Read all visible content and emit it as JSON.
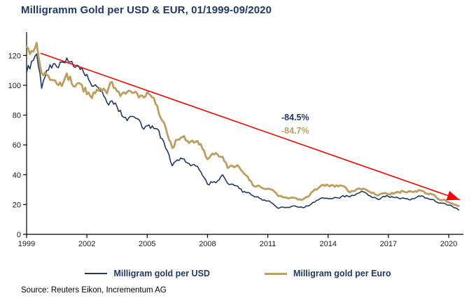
{
  "title": "Milligramm Gold per USD & EUR, 01/1999-09/2020",
  "source_line": "Source: Reuters Eikon, Incrementum AG",
  "colors": {
    "navy": "#1F3864",
    "gold": "#BD9E5F",
    "red": "#FF0000",
    "axis": "#000000"
  },
  "annotations": {
    "usd_decline": "-84.5%",
    "eur_decline": "-84.7%"
  },
  "legend": {
    "usd_label": "Milligram gold per USD",
    "eur_label": "Milligram gold per Euro"
  },
  "chart_data": {
    "type": "line",
    "title": "Milligramm Gold per USD & EUR, 01/1999-09/2020",
    "xlabel": "",
    "ylabel": "",
    "xlim": [
      1999,
      2020.73
    ],
    "ylim": [
      0,
      130
    ],
    "x_ticks": [
      1999,
      2002,
      2005,
      2008,
      2011,
      2014,
      2017,
      2020
    ],
    "y_ticks": [
      0,
      20,
      40,
      60,
      80,
      100,
      120
    ],
    "grid": false,
    "legend_position": "bottom",
    "x_start": 1999.0,
    "x_step": 0.25,
    "series": [
      {
        "name": "Milligram gold per USD",
        "color": "#1F3864",
        "values": [
          108.4,
          116.1,
          121.0,
          98.0,
          110.0,
          111.5,
          112.3,
          115.6,
          118.3,
          116.0,
          113.5,
          111.9,
          107.3,
          99.4,
          99.1,
          96.3,
          88.4,
          89.6,
          85.7,
          79.3,
          76.2,
          79.1,
          77.6,
          71.7,
          72.8,
          72.8,
          70.7,
          64.1,
          56.1,
          46.0,
          50.0,
          50.7,
          47.9,
          46.6,
          45.7,
          39.5,
          33.6,
          34.8,
          35.8,
          40.0,
          34.2,
          33.7,
          32.4,
          28.3,
          28.0,
          26.0,
          25.3,
          22.8,
          22.4,
          20.6,
          17.5,
          18.3,
          18.1,
          19.0,
          18.3,
          17.9,
          19.0,
          21.5,
          23.0,
          24.5,
          24.0,
          24.1,
          24.4,
          25.9,
          25.5,
          26.1,
          27.6,
          28.6,
          26.2,
          24.7,
          23.3,
          25.5,
          25.4,
          24.8,
          24.3,
          24.4,
          23.4,
          23.8,
          25.8,
          25.3,
          23.8,
          23.3,
          21.0,
          21.0,
          19.6,
          18.0,
          16.3
        ]
      },
      {
        "name": "Milligram gold per Euro",
        "color": "#BD9E5F",
        "values": [
          126.0,
          123.0,
          128.5,
          108.0,
          107.0,
          103.7,
          101.0,
          99.5,
          108.0,
          101.0,
          101.0,
          100.1,
          94.0,
          91.4,
          97.1,
          96.3,
          94.5,
          102.2,
          96.0,
          94.5,
          95.4,
          95.0,
          94.6,
          93.1,
          95.4,
          91.8,
          86.2,
          76.3,
          67.3,
          58.0,
          63.5,
          65.3,
          62.7,
          63.0,
          62.7,
          57.3,
          50.4,
          54.2,
          53.6,
          52.0,
          44.5,
          45.9,
          46.4,
          41.9,
          38.7,
          33.0,
          32.7,
          30.9,
          30.7,
          29.7,
          25.8,
          24.9,
          24.1,
          24.7,
          23.3,
          23.6,
          25.2,
          28.8,
          30.9,
          33.2,
          32.9,
          33.0,
          32.2,
          32.4,
          28.8,
          29.0,
          30.7,
          30.7,
          29.0,
          27.9,
          26.1,
          27.5,
          27.0,
          27.3,
          28.4,
          28.8,
          28.8,
          28.4,
          29.7,
          28.9,
          26.9,
          26.6,
          23.4,
          23.3,
          21.6,
          20.0,
          19.0
        ]
      }
    ],
    "trendline": {
      "color": "#FF0000",
      "from": {
        "x": 1999.7,
        "value": 121.5
      },
      "to": {
        "x": 2020.55,
        "value": 23.2
      },
      "arrow": true
    }
  }
}
